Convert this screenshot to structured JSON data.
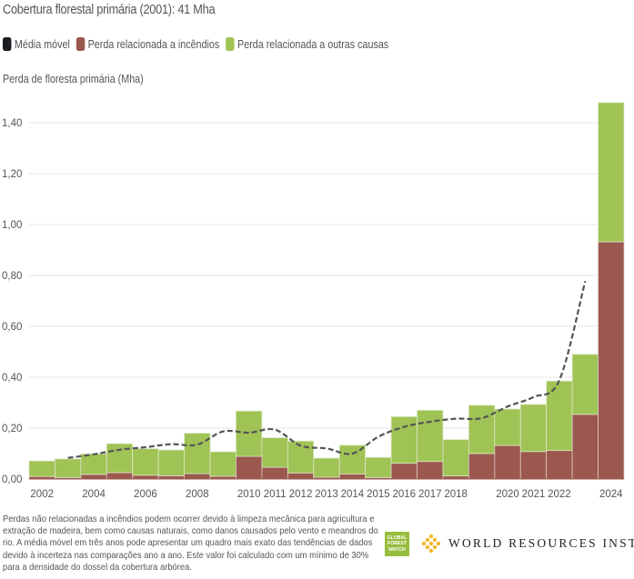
{
  "header": {
    "title": "Cobertura florestal primária (2001): 41 Mha"
  },
  "legend": [
    {
      "label": "Média móvel",
      "color": "#1a1d21",
      "key": "moving_average"
    },
    {
      "label": "Perda relacionada a incêndios",
      "color": "#9b584f",
      "key": "fire"
    },
    {
      "label": "Perda relacionada a outras causas",
      "color": "#a0c355",
      "key": "other"
    }
  ],
  "chart_data": {
    "type": "bar",
    "stacked": true,
    "title": "Cobertura florestal primária (2001): 41 Mha",
    "xlabel": "",
    "ylabel": "Perda de floresta primária (Mha)",
    "ylim": [
      0,
      1.5
    ],
    "yticks": [
      0,
      0.2,
      0.4,
      0.6,
      0.8,
      1.0,
      1.2,
      1.4
    ],
    "ytick_labels": [
      "0,00",
      "0,20",
      "0,40",
      "0,60",
      "0,80",
      "1,00",
      "1,20",
      "1,40"
    ],
    "grid": true,
    "legend_position": "top-left",
    "categories": [
      2002,
      2003,
      2004,
      2005,
      2006,
      2007,
      2008,
      2009,
      2010,
      2011,
      2012,
      2013,
      2014,
      2015,
      2016,
      2017,
      2018,
      2019,
      2020,
      2021,
      2022,
      2023,
      2024
    ],
    "xtick_labels": [
      "2002",
      "",
      "2004",
      "",
      "2006",
      "",
      "2008",
      "",
      "2010",
      "2011",
      "2012",
      "2013",
      "2014",
      "2015",
      "2016",
      "2017",
      "2018",
      "",
      "2020",
      "2021",
      "2022",
      "",
      "2024"
    ],
    "series": [
      {
        "name": "Perda relacionada a incêndios",
        "color": "#9b584f",
        "values": [
          0.01,
          0.006,
          0.018,
          0.025,
          0.015,
          0.013,
          0.021,
          0.011,
          0.089,
          0.046,
          0.024,
          0.007,
          0.02,
          0.006,
          0.062,
          0.069,
          0.012,
          0.1,
          0.132,
          0.108,
          0.112,
          0.254,
          0.932
        ]
      },
      {
        "name": "Perda relacionada a outras causas",
        "color": "#a0c355",
        "values": [
          0.061,
          0.073,
          0.081,
          0.114,
          0.104,
          0.101,
          0.159,
          0.096,
          0.178,
          0.116,
          0.125,
          0.075,
          0.113,
          0.079,
          0.183,
          0.201,
          0.143,
          0.19,
          0.143,
          0.185,
          0.273,
          0.236,
          0.547
        ]
      },
      {
        "name": "Média móvel",
        "color": "#555555",
        "style": "dashed",
        "x": [
          2003,
          2004,
          2005,
          2006,
          2007,
          2008,
          2009,
          2010,
          2011,
          2012,
          2013,
          2014,
          2015,
          2016,
          2017,
          2018,
          2019,
          2020,
          2021,
          2022,
          2023
        ],
        "values": [
          0.083,
          0.097,
          0.115,
          0.125,
          0.137,
          0.135,
          0.187,
          0.182,
          0.194,
          0.131,
          0.12,
          0.1,
          0.166,
          0.205,
          0.225,
          0.237,
          0.239,
          0.285,
          0.322,
          0.388,
          0.777
        ]
      }
    ]
  },
  "footnote": "Perdas não relacionadas a incêndios podem ocorrer devido à limpeza mecânica para agricultura e extração de madeira, bem como causas naturais, como danos causados pelo vento e meandros do rio. A média móvel em três anos pode apresentar um quadro mais exato das tendências de dados devido à incerteza nas comparações ano a ano. Este valor foi calculado com um mínimo de 30% para a densidade do dossel da cobertura arbórea.",
  "logos": {
    "gfw": [
      "GLOBAL",
      "FOREST",
      "WATCH"
    ],
    "wri": "WORLD RESOURCES INSTITUTE"
  }
}
